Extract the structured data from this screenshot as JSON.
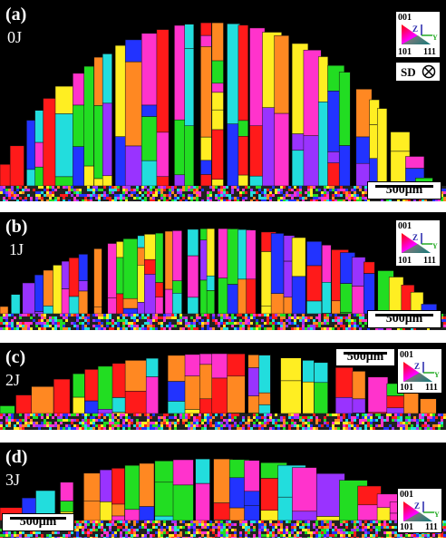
{
  "panels": [
    {
      "label": "(a)",
      "energy": "0J",
      "scale": "500μm",
      "sd": "SD"
    },
    {
      "label": "(b)",
      "energy": "1J",
      "scale": "500μm"
    },
    {
      "label": "(c)",
      "energy": "2J",
      "scale": "500μm"
    },
    {
      "label": "(d)",
      "energy": "3J",
      "scale": "500μm"
    }
  ],
  "legend": {
    "top": "001",
    "left": "101",
    "right": "111",
    "z": "Z",
    "y": "Y"
  },
  "colors": {
    "red": "#ff1a1a",
    "green": "#22dd22",
    "blue": "#2233ff",
    "yellow": "#ffee22",
    "magenta": "#ff33cc",
    "cyan": "#22dddd",
    "orange": "#ff8822",
    "purple": "#9933ff"
  }
}
